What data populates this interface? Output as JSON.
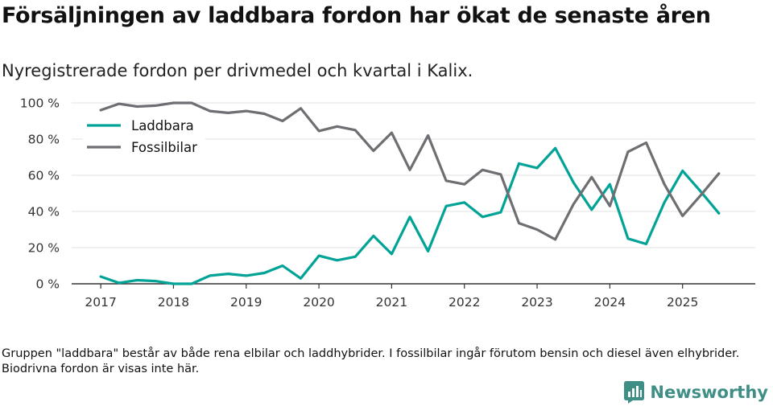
{
  "title": "Försäljningen av laddbara fordon har ökat de senaste åren",
  "subtitle": "Nyregistrerade fordon per drivmedel och kvartal i Kalix.",
  "footnote": "Gruppen \"laddbara\" består av både rena elbilar och laddhybrider. I fossilbilar ingår förutom bensin och diesel även elhybrider. Biodrivna fordon är visas inte här.",
  "brand": {
    "name": "Newsworthy",
    "logo_icon": "bar-chart-document-icon",
    "color": "#3f8f86"
  },
  "chart_data": {
    "type": "line",
    "title": "Försäljningen av laddbara fordon har ökat de senaste åren",
    "xlabel": "",
    "ylabel": "",
    "ylim": [
      0,
      100
    ],
    "y_ticks": [
      0,
      20,
      40,
      60,
      80,
      100
    ],
    "y_tick_labels": [
      "0 %",
      "20 %",
      "40 %",
      "60 %",
      "80 %",
      "100 %"
    ],
    "x_ticks": [
      2017,
      2018,
      2019,
      2020,
      2021,
      2022,
      2023,
      2024,
      2025
    ],
    "x_tick_labels": [
      "2017",
      "2018",
      "2019",
      "2020",
      "2021",
      "2022",
      "2023",
      "2024",
      "2025"
    ],
    "xlim": [
      2016.6,
      2026.0
    ],
    "grid": true,
    "legend_position": "top-left",
    "x": [
      2017.0,
      2017.25,
      2017.5,
      2017.75,
      2018.0,
      2018.25,
      2018.5,
      2018.75,
      2019.0,
      2019.25,
      2019.5,
      2019.75,
      2020.0,
      2020.25,
      2020.5,
      2020.75,
      2021.0,
      2021.25,
      2021.5,
      2021.75,
      2022.0,
      2022.25,
      2022.5,
      2022.75,
      2023.0,
      2023.25,
      2023.5,
      2023.75,
      2024.0,
      2024.25,
      2024.5,
      2024.75,
      2025.0,
      2025.25,
      2025.5
    ],
    "series": [
      {
        "name": "Laddbara",
        "color": "#00a396",
        "values": [
          4,
          0.5,
          2,
          1.5,
          0,
          0,
          4.5,
          5.5,
          4.5,
          6,
          10,
          3,
          15.5,
          13,
          15,
          26.5,
          16.5,
          37,
          18,
          43,
          45,
          37,
          39.5,
          66.5,
          64,
          75,
          56,
          41,
          55,
          25,
          22,
          45,
          62.5,
          51,
          39
        ]
      },
      {
        "name": "Fossilbilar",
        "color": "#6e6e73",
        "values": [
          96,
          99.5,
          98,
          98.5,
          100,
          100,
          95.5,
          94.5,
          95.5,
          94,
          90,
          97,
          84.5,
          87,
          85,
          73.5,
          83.5,
          63,
          82,
          57,
          55,
          63,
          60.5,
          33.5,
          30,
          24.5,
          44,
          59,
          43,
          73,
          78,
          55,
          37.5,
          49,
          61
        ]
      }
    ]
  }
}
